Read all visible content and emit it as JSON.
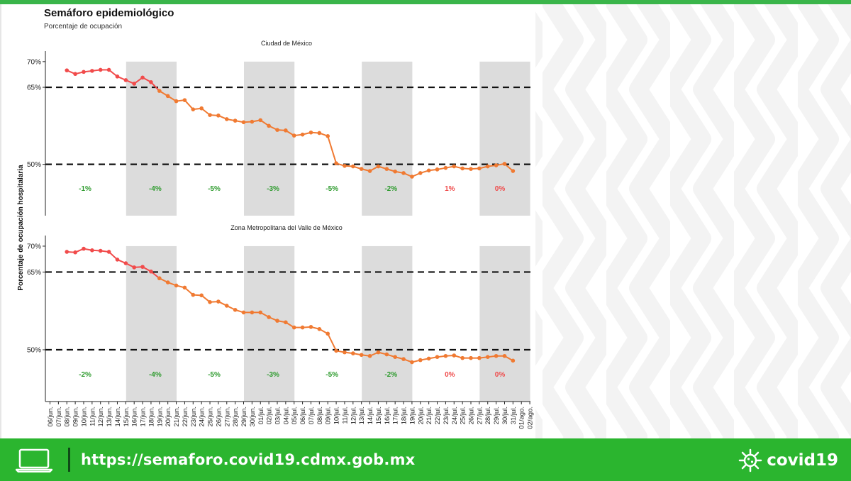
{
  "header": {
    "title": "Semáforo epidemiológico",
    "subtitle": "Porcentaje de ocupación"
  },
  "footer": {
    "url": "https://semaforo.covid19.cdmx.gob.mx",
    "brand": "covid19"
  },
  "colors": {
    "accent_green": "#2bb52f",
    "line_red": "#f14b4b",
    "line_orange": "#f07a32",
    "label_green": "#2e9b2e",
    "label_red": "#ef4b4b",
    "band_gray": "#dcdcdc"
  },
  "chart_data": {
    "type": "line",
    "ylabel": "Porcentaje de ocupación hospitalaria",
    "y_ticks": [
      50,
      65,
      70
    ],
    "y_tick_labels": [
      "50%",
      "65%",
      "70%"
    ],
    "ylim": [
      40,
      71.5
    ],
    "thresholds": [
      50,
      65
    ],
    "dates": [
      "06/jun.",
      "07/jun.",
      "08/jun.",
      "09/jun.",
      "10/jun.",
      "11/jun.",
      "12/jun.",
      "13/jun.",
      "14/jun.",
      "15/jun.",
      "16/jun.",
      "17/jun.",
      "18/jun.",
      "19/jun.",
      "20/jun.",
      "21/jun.",
      "22/jun.",
      "23/jun.",
      "24/jun.",
      "25/jun.",
      "26/jun.",
      "27/jun.",
      "28/jun.",
      "29/jun.",
      "30/jun.",
      "01/jul.",
      "02/jul.",
      "03/jul.",
      "04/jul.",
      "05/jul.",
      "06/jul.",
      "07/jul.",
      "08/jul.",
      "09/jul.",
      "10/jul.",
      "11/jul.",
      "12/jul.",
      "13/jul.",
      "14/jul.",
      "15/jul.",
      "16/jul.",
      "17/jul.",
      "18/jul.",
      "19/jul.",
      "20/jul.",
      "21/jul.",
      "22/jul.",
      "23/jul.",
      "24/jul.",
      "25/jul.",
      "26/jul.",
      "27/jul.",
      "28/jul.",
      "29/jul.",
      "30/jul.",
      "31/jul.",
      "01/ago.",
      "02/ago."
    ],
    "shaded_weeks": [
      [
        "15/jun.",
        "21/jun."
      ],
      [
        "29/jun.",
        "05/jul."
      ],
      [
        "13/jul.",
        "19/jul."
      ],
      [
        "27/jul.",
        "02/ago."
      ]
    ],
    "panels": [
      {
        "title": "Ciudad de México",
        "start_index": 2,
        "values": [
          68.3,
          67.6,
          68.0,
          68.2,
          68.4,
          68.4,
          67.1,
          66.4,
          65.7,
          66.9,
          66.0,
          64.3,
          63.3,
          62.3,
          62.5,
          60.7,
          60.9,
          59.6,
          59.5,
          58.8,
          58.5,
          58.2,
          58.3,
          58.6,
          57.5,
          56.7,
          56.6,
          55.6,
          55.8,
          56.2,
          56.1,
          55.5,
          50.2,
          49.7,
          49.6,
          49.1,
          48.7,
          49.6,
          49.1,
          48.6,
          48.3,
          47.6,
          48.3,
          48.8,
          49.0,
          49.3,
          49.6,
          49.2,
          49.1,
          49.2,
          49.6,
          49.8,
          50.1,
          48.7
        ],
        "change_labels": [
          "-1%",
          "-4%",
          "-5%",
          "-3%",
          "-5%",
          "-2%",
          "1%",
          "0%"
        ],
        "change_colors": [
          "green",
          "green",
          "green",
          "green",
          "green",
          "green",
          "red",
          "red"
        ]
      },
      {
        "title": "Zona Metropolitana del Valle de México",
        "start_index": 2,
        "values": [
          68.9,
          68.8,
          69.5,
          69.2,
          69.1,
          68.9,
          67.4,
          66.7,
          65.9,
          66.0,
          65.1,
          63.8,
          63.0,
          62.4,
          62.0,
          60.6,
          60.5,
          59.2,
          59.3,
          58.5,
          57.7,
          57.2,
          57.2,
          57.2,
          56.3,
          55.6,
          55.3,
          54.3,
          54.3,
          54.4,
          54.0,
          53.1,
          49.8,
          49.5,
          49.3,
          49.0,
          48.8,
          49.5,
          49.1,
          48.6,
          48.2,
          47.6,
          48.0,
          48.3,
          48.6,
          48.8,
          48.9,
          48.4,
          48.4,
          48.4,
          48.6,
          48.8,
          48.8,
          47.9
        ],
        "change_labels": [
          "-2%",
          "-4%",
          "-5%",
          "-3%",
          "-5%",
          "-2%",
          "0%",
          "0%"
        ],
        "change_colors": [
          "green",
          "green",
          "green",
          "green",
          "green",
          "green",
          "red",
          "red"
        ]
      }
    ]
  }
}
